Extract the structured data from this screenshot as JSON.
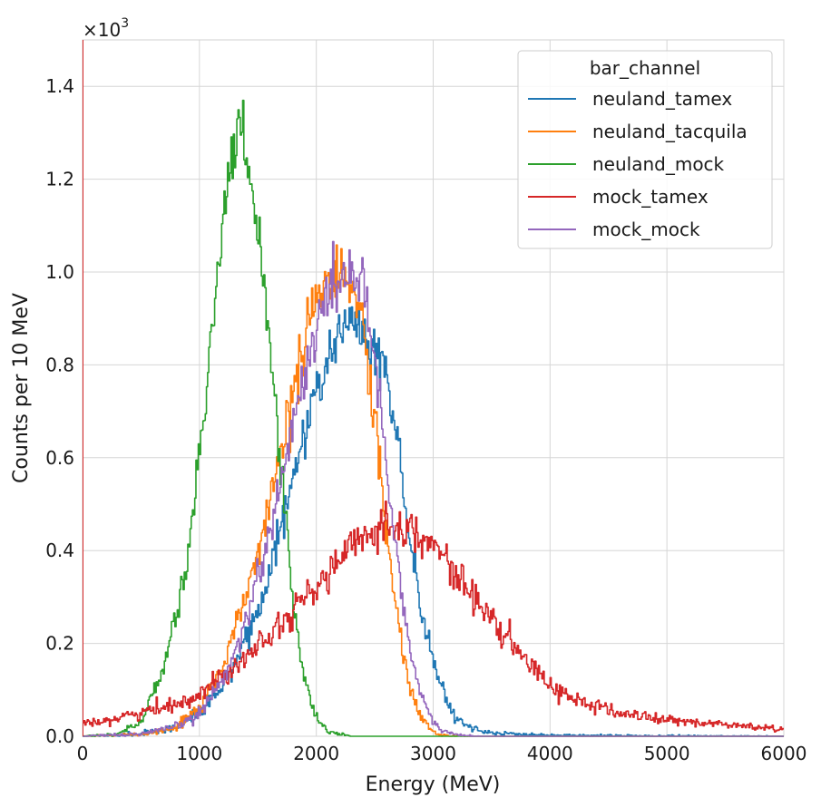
{
  "chart_data": {
    "type": "line",
    "title": "",
    "xlabel": "Energy (MeV)",
    "ylabel": "Counts per 10 MeV",
    "y_multiplier_label": "×10",
    "y_multiplier_exponent": "3",
    "xlim": [
      0,
      6000
    ],
    "ylim": [
      0,
      1.5
    ],
    "xticks": [
      0,
      1000,
      2000,
      3000,
      4000,
      5000,
      6000
    ],
    "xtick_labels": [
      "0",
      "1000",
      "2000",
      "3000",
      "4000",
      "5000",
      "6000"
    ],
    "yticks": [
      0,
      0.2,
      0.4,
      0.6,
      0.8,
      1.0,
      1.2,
      1.4
    ],
    "ytick_labels": [
      "0.0",
      "0.2",
      "0.4",
      "0.6",
      "0.8",
      "1.0",
      "1.2",
      "1.4"
    ],
    "grid": true,
    "bin_width_mev": 10,
    "legend": {
      "title": "bar_channel",
      "placement": "top-right"
    },
    "series": [
      {
        "name": "neuland_tamex",
        "color": "#1f77b4",
        "x": [
          0,
          500,
          800,
          1000,
          1200,
          1400,
          1600,
          1800,
          2000,
          2200,
          2300,
          2400,
          2500,
          2600,
          2700,
          2800,
          2900,
          3000,
          3100,
          3200,
          3400,
          3700,
          4000,
          6000
        ],
        "values": [
          0.0,
          0.005,
          0.02,
          0.05,
          0.11,
          0.2,
          0.35,
          0.55,
          0.75,
          0.87,
          0.9,
          0.88,
          0.84,
          0.78,
          0.63,
          0.42,
          0.27,
          0.16,
          0.08,
          0.035,
          0.01,
          0.004,
          0.002,
          0.0
        ]
      },
      {
        "name": "neuland_tacquila",
        "color": "#ff7f0e",
        "x": [
          0,
          500,
          800,
          1000,
          1200,
          1400,
          1600,
          1800,
          1900,
          2000,
          2100,
          2200,
          2300,
          2400,
          2500,
          2600,
          2700,
          2800,
          2900,
          3000,
          3100,
          3300,
          6000
        ],
        "values": [
          0.0,
          0.004,
          0.02,
          0.06,
          0.15,
          0.3,
          0.5,
          0.74,
          0.85,
          0.93,
          0.98,
          1.0,
          0.97,
          0.88,
          0.68,
          0.44,
          0.24,
          0.1,
          0.04,
          0.01,
          0.002,
          0.0,
          0.0
        ]
      },
      {
        "name": "neuland_mock",
        "color": "#2ca02c",
        "x": [
          0,
          300,
          500,
          700,
          900,
          1000,
          1100,
          1200,
          1300,
          1350,
          1400,
          1500,
          1600,
          1700,
          1800,
          1900,
          2000,
          2100,
          2300,
          6000
        ],
        "values": [
          0.0,
          0.005,
          0.03,
          0.15,
          0.38,
          0.6,
          0.85,
          1.12,
          1.27,
          1.3,
          1.25,
          1.1,
          0.87,
          0.57,
          0.3,
          0.12,
          0.04,
          0.01,
          0.0,
          0.0
        ]
      },
      {
        "name": "mock_tamex",
        "color": "#d62728",
        "x": [
          0,
          200,
          500,
          800,
          1000,
          1200,
          1500,
          1800,
          2000,
          2200,
          2400,
          2600,
          2700,
          2800,
          3000,
          3200,
          3500,
          3800,
          4000,
          4300,
          4600,
          5000,
          5500,
          6000
        ],
        "values": [
          0.03,
          0.035,
          0.05,
          0.07,
          0.09,
          0.13,
          0.2,
          0.27,
          0.32,
          0.38,
          0.43,
          0.46,
          0.455,
          0.45,
          0.41,
          0.35,
          0.25,
          0.16,
          0.11,
          0.07,
          0.05,
          0.035,
          0.025,
          0.015
        ]
      },
      {
        "name": "mock_mock",
        "color": "#9467bd",
        "x": [
          0,
          500,
          800,
          1000,
          1200,
          1400,
          1600,
          1800,
          1900,
          2000,
          2100,
          2200,
          2300,
          2400,
          2500,
          2600,
          2700,
          2800,
          2900,
          3000,
          3100,
          3200,
          3400,
          6000
        ],
        "values": [
          0.0,
          0.004,
          0.02,
          0.05,
          0.12,
          0.25,
          0.44,
          0.67,
          0.78,
          0.88,
          0.95,
          0.99,
          1.01,
          0.96,
          0.82,
          0.59,
          0.37,
          0.19,
          0.08,
          0.03,
          0.01,
          0.003,
          0.0,
          0.0
        ]
      }
    ]
  }
}
